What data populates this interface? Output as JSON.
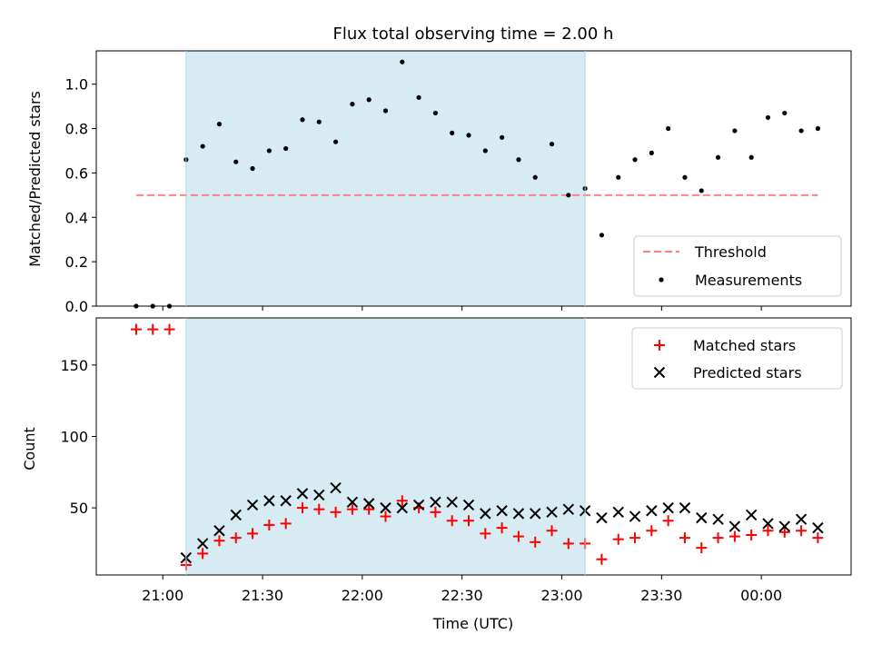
{
  "chart_data": [
    {
      "type": "scatter",
      "title": "Flux total observing time = 2.00 h",
      "ylabel": "Matched/Predicted stars",
      "xlabel": "",
      "x_unit": "time (UTC)",
      "ylim": [
        0.0,
        1.15
      ],
      "xlim": [
        "20:40",
        "00:27"
      ],
      "yticks": [
        "0.0",
        "0.2",
        "0.4",
        "0.6",
        "0.8",
        "1.0"
      ],
      "shaded_band": {
        "from": "21:07",
        "to": "23:07",
        "color": "#add8e6"
      },
      "legend": {
        "placement": "lower-right",
        "entries": [
          "Threshold",
          "Measurements"
        ]
      },
      "series": [
        {
          "name": "Threshold",
          "style": "dashed-line",
          "color": "#ff8080",
          "x": [
            "20:52",
            "00:17"
          ],
          "y": [
            0.5,
            0.5
          ]
        },
        {
          "name": "Measurements",
          "style": "dot",
          "color": "#000000",
          "x": [
            "20:52",
            "20:57",
            "21:02",
            "21:07",
            "21:12",
            "21:17",
            "21:22",
            "21:27",
            "21:32",
            "21:37",
            "21:42",
            "21:47",
            "21:52",
            "21:57",
            "22:02",
            "22:07",
            "22:12",
            "22:17",
            "22:22",
            "22:27",
            "22:32",
            "22:37",
            "22:42",
            "22:47",
            "22:52",
            "22:57",
            "23:02",
            "23:07",
            "23:12",
            "23:17",
            "23:22",
            "23:27",
            "23:32",
            "23:37",
            "23:42",
            "23:47",
            "23:52",
            "23:57",
            "00:02",
            "00:07",
            "00:12",
            "00:17"
          ],
          "y": [
            0.0,
            0.0,
            0.0,
            0.66,
            0.72,
            0.82,
            0.65,
            0.62,
            0.7,
            0.71,
            0.84,
            0.83,
            0.74,
            0.91,
            0.93,
            0.88,
            1.1,
            0.94,
            0.87,
            0.78,
            0.77,
            0.7,
            0.76,
            0.66,
            0.58,
            0.73,
            0.5,
            0.53,
            0.32,
            0.58,
            0.66,
            0.69,
            0.8,
            0.58,
            0.52,
            0.67,
            0.79,
            0.67,
            0.85,
            0.87,
            0.79,
            0.8
          ]
        }
      ]
    },
    {
      "type": "scatter",
      "title": "",
      "ylabel": "Count",
      "xlabel": "Time (UTC)",
      "ylim": [
        3,
        183
      ],
      "xlim": [
        "20:40",
        "00:27"
      ],
      "yticks": [
        "50",
        "100",
        "150"
      ],
      "xticks": [
        "21:00",
        "21:30",
        "22:00",
        "22:30",
        "23:00",
        "23:30",
        "00:00"
      ],
      "shaded_band": {
        "from": "21:07",
        "to": "23:07",
        "color": "#add8e6"
      },
      "legend": {
        "placement": "upper-right",
        "entries": [
          "Matched stars",
          "Predicted stars"
        ]
      },
      "series": [
        {
          "name": "Matched stars",
          "marker": "plus",
          "color": "#ff0000",
          "x": [
            "20:52",
            "20:57",
            "21:02",
            "21:07",
            "21:12",
            "21:17",
            "21:22",
            "21:27",
            "21:32",
            "21:37",
            "21:42",
            "21:47",
            "21:52",
            "21:57",
            "22:02",
            "22:07",
            "22:12",
            "22:17",
            "22:22",
            "22:27",
            "22:32",
            "22:37",
            "22:42",
            "22:47",
            "22:52",
            "22:57",
            "23:02",
            "23:07",
            "23:12",
            "23:17",
            "23:22",
            "23:27",
            "23:32",
            "23:37",
            "23:42",
            "23:47",
            "23:52",
            "23:57",
            "00:02",
            "00:07",
            "00:12",
            "00:17"
          ],
          "y": [
            175,
            175,
            175,
            10,
            18,
            27,
            29,
            32,
            38,
            39,
            50,
            49,
            47,
            49,
            49,
            44,
            55,
            50,
            47,
            41,
            41,
            32,
            36,
            30,
            26,
            34,
            25,
            25,
            14,
            28,
            29,
            34,
            41,
            29,
            22,
            29,
            30,
            31,
            34,
            33,
            34,
            29
          ]
        },
        {
          "name": "Predicted stars",
          "marker": "x",
          "color": "#000000",
          "x": [
            "21:07",
            "21:12",
            "21:17",
            "21:22",
            "21:27",
            "21:32",
            "21:37",
            "21:42",
            "21:47",
            "21:52",
            "21:57",
            "22:02",
            "22:07",
            "22:12",
            "22:17",
            "22:22",
            "22:27",
            "22:32",
            "22:37",
            "22:42",
            "22:47",
            "22:52",
            "22:57",
            "23:02",
            "23:07",
            "23:12",
            "23:17",
            "23:22",
            "23:27",
            "23:32",
            "23:37",
            "23:42",
            "23:47",
            "23:52",
            "23:57",
            "00:02",
            "00:07",
            "00:12",
            "00:17"
          ],
          "y": [
            15,
            25,
            34,
            45,
            52,
            55,
            55,
            60,
            59,
            64,
            54,
            53,
            50,
            50,
            52,
            54,
            54,
            52,
            46,
            48,
            46,
            46,
            47,
            49,
            48,
            43,
            47,
            44,
            48,
            50,
            50,
            43,
            42,
            37,
            45,
            39,
            37,
            42,
            36
          ]
        }
      ]
    }
  ]
}
